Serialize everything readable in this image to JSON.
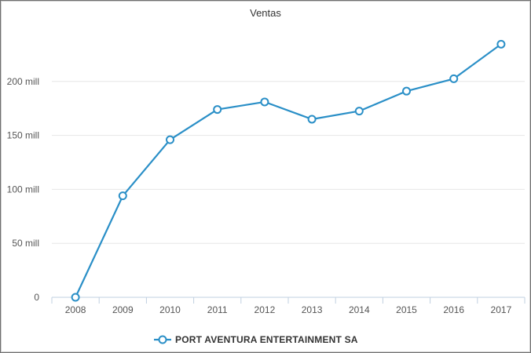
{
  "chart_data": {
    "type": "line",
    "title": "Ventas",
    "xlabel": "",
    "ylabel": "",
    "categories": [
      "2008",
      "2009",
      "2010",
      "2011",
      "2012",
      "2013",
      "2014",
      "2015",
      "2016",
      "2017"
    ],
    "series": [
      {
        "name": "PORT AVENTURA ENTERTAINMENT SA",
        "values": [
          0,
          94000000,
          146000000,
          174000000,
          181000000,
          165000000,
          172500000,
          191000000,
          202500000,
          234500000
        ]
      }
    ],
    "ylim": [
      0,
      250000000
    ],
    "yticks": [
      0,
      50000000,
      100000000,
      150000000,
      200000000
    ],
    "ytick_labels": [
      "0",
      "50 mill",
      "100 mill",
      "150 mill",
      "200 mill"
    ],
    "grid": true,
    "legend_position": "bottom-center",
    "colors": {
      "series": "#2a8fc7",
      "grid": "#e6e6e6",
      "axis": "#c0d0e0"
    }
  }
}
